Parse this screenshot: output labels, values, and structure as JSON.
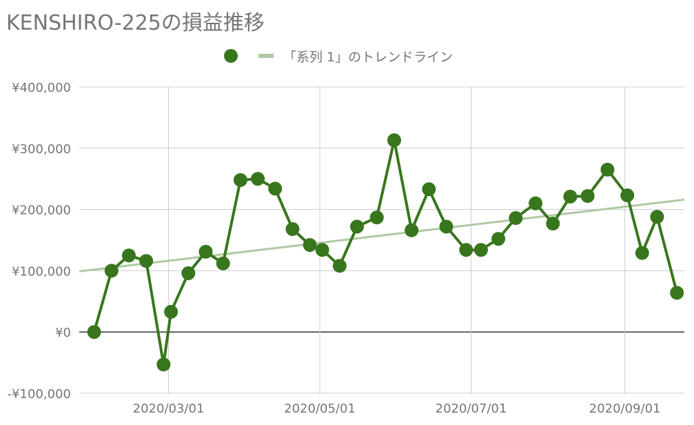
{
  "title": "KENSHIRO-225の損益推移",
  "legend": {
    "series_label": "",
    "trend_label": "「系列 1」のトレンドライン"
  },
  "colors": {
    "series": "#38761d",
    "trend": "#aec9a3",
    "grid": "#cccccc",
    "zero_line": "#333333",
    "text": "#757575"
  },
  "chart_data": {
    "type": "line",
    "title": "KENSHIRO-225の損益推移",
    "xlabel": "",
    "ylabel": "",
    "x_tick_labels": [
      "2020/03/01",
      "2020/05/01",
      "2020/07/01",
      "2020/09/01"
    ],
    "x_ticks": [
      "2020-03-01",
      "2020-05-01",
      "2020-07-01",
      "2020-09-01"
    ],
    "xlim": [
      "2020-01-25",
      "2020-09-25"
    ],
    "ylim": [
      -100000,
      400000
    ],
    "y_ticks": [
      -100000,
      0,
      100000,
      200000,
      300000,
      400000
    ],
    "y_tick_labels": [
      "-¥100,000",
      "¥0",
      "¥100,000",
      "¥200,000",
      "¥300,000",
      "¥400,000"
    ],
    "grid": true,
    "legend_position": "top",
    "series": [
      {
        "x": [
          "2020-01-31",
          "2020-02-07",
          "2020-02-14",
          "2020-02-21",
          "2020-02-28",
          "2020-03-02",
          "2020-03-09",
          "2020-03-16",
          "2020-03-23",
          "2020-03-30",
          "2020-04-06",
          "2020-04-13",
          "2020-04-20",
          "2020-04-27",
          "2020-05-02",
          "2020-05-09",
          "2020-05-16",
          "2020-05-24",
          "2020-05-31",
          "2020-06-07",
          "2020-06-14",
          "2020-06-21",
          "2020-06-29",
          "2020-07-05",
          "2020-07-12",
          "2020-07-19",
          "2020-07-27",
          "2020-08-03",
          "2020-08-10",
          "2020-08-17",
          "2020-08-25",
          "2020-09-02",
          "2020-09-08",
          "2020-09-14",
          "2020-09-22"
        ],
        "values": [
          0,
          100000,
          125000,
          116000,
          -53000,
          33000,
          96000,
          131000,
          112000,
          248000,
          250000,
          234000,
          168000,
          142000,
          134000,
          108000,
          172000,
          187000,
          313000,
          166000,
          233000,
          172000,
          134000,
          134000,
          152000,
          186000,
          210000,
          177000,
          221000,
          222000,
          265000,
          223000,
          129000,
          188000,
          64000
        ]
      },
      {
        "name": "「系列 1」のトレンドライン",
        "type": "trendline",
        "x": [
          "2020-01-25",
          "2020-09-25"
        ],
        "values": [
          99000,
          216000
        ]
      }
    ]
  }
}
